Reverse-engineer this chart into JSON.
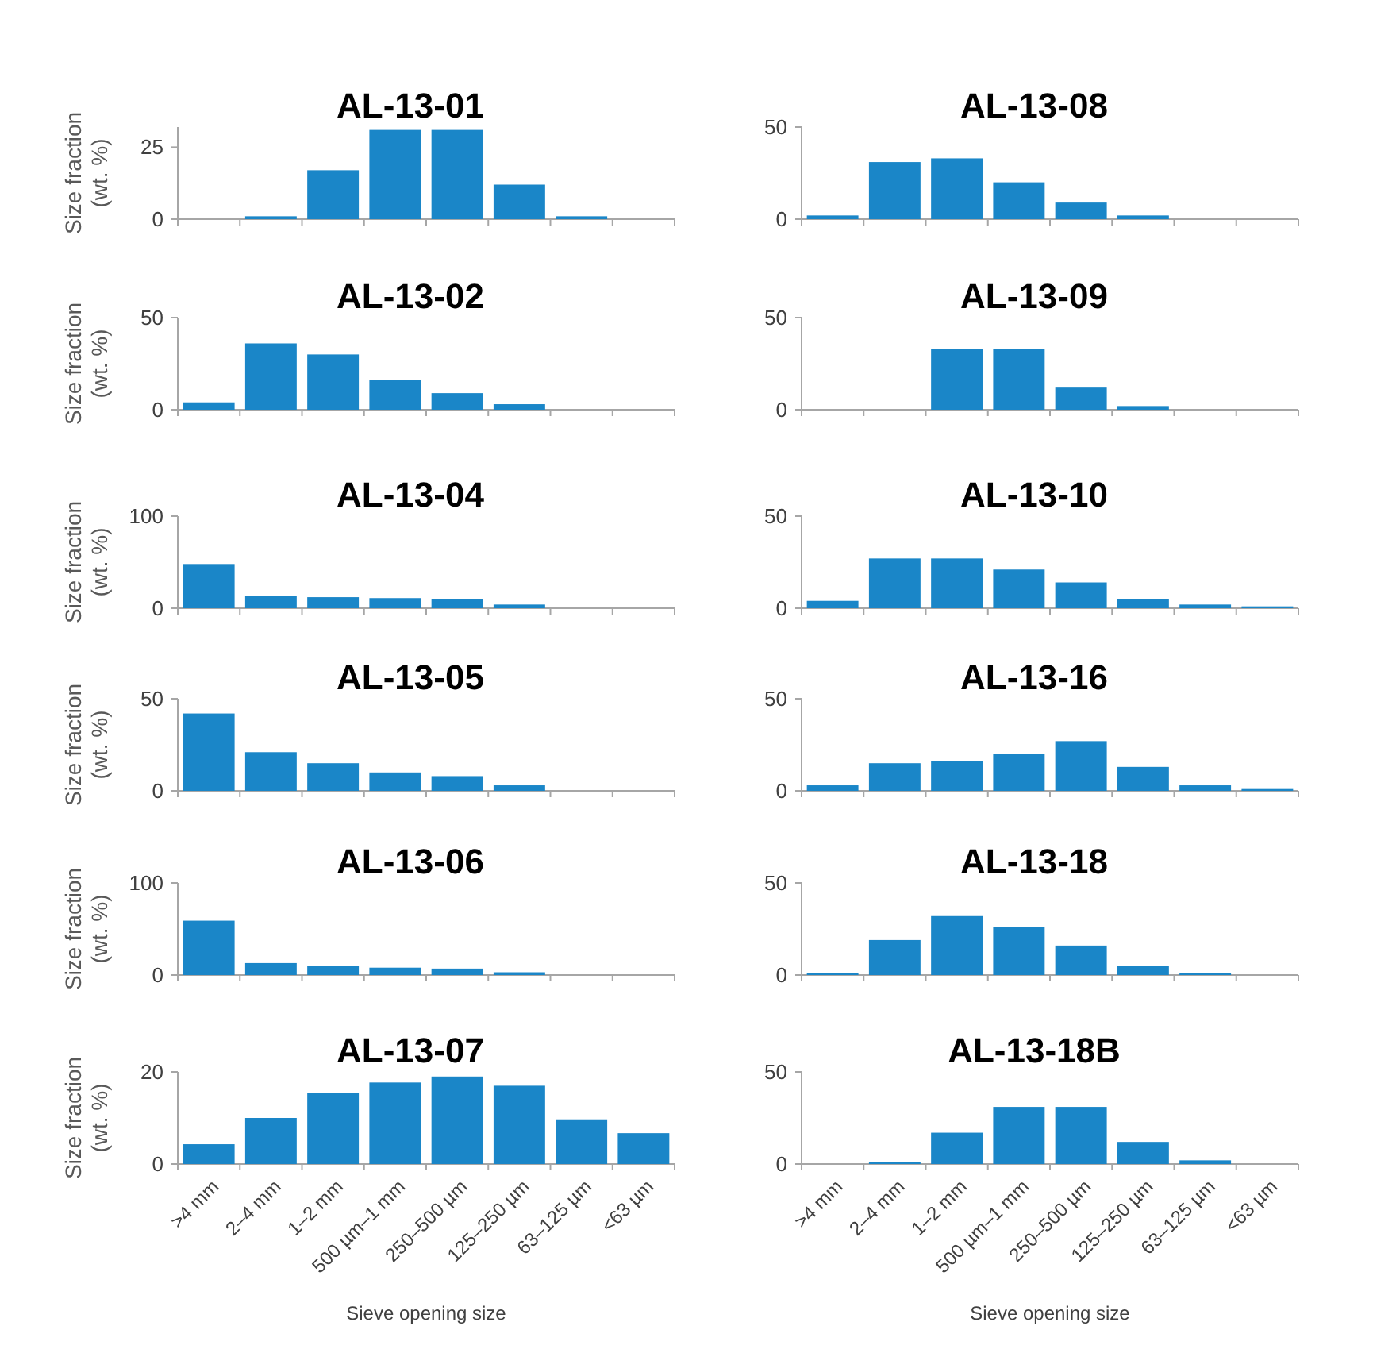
{
  "chart_data": [
    {
      "type": "bar",
      "title": "AL-13-01",
      "ylabel": "Size fraction (wt. %)",
      "categories": [
        null,
        null,
        null,
        null,
        null,
        null,
        null,
        null
      ],
      "values": [
        0,
        1,
        17,
        31,
        31,
        12,
        1,
        0
      ],
      "color": "#1a86c8",
      "ylim": [
        0,
        32
      ],
      "yticks": [
        0,
        25
      ],
      "tick_labels": "y"
    },
    {
      "type": "bar",
      "title": "AL-13-08",
      "categories": [
        null,
        null,
        null,
        null,
        null,
        null,
        null,
        null
      ],
      "values": [
        2,
        31,
        33,
        20,
        9,
        2,
        0,
        0
      ],
      "color": "#1a86c8",
      "ylim": [
        0,
        50
      ],
      "yticks": [
        0,
        50
      ],
      "tick_labels": "y"
    },
    {
      "type": "bar",
      "title": "AL-13-02",
      "ylabel": "Size fraction (wt. %)",
      "categories": [
        null,
        null,
        null,
        null,
        null,
        null,
        null,
        null
      ],
      "values": [
        4,
        36,
        30,
        16,
        9,
        3,
        0,
        0
      ],
      "color": "#1a86c8",
      "ylim": [
        0,
        50
      ],
      "yticks": [
        0,
        50
      ],
      "tick_labels": "y"
    },
    {
      "type": "bar",
      "title": "AL-13-09",
      "categories": [
        null,
        null,
        null,
        null,
        null,
        null,
        null,
        null
      ],
      "values": [
        0,
        0,
        33,
        33,
        12,
        2,
        0,
        0
      ],
      "color": "#1a86c8",
      "ylim": [
        0,
        50
      ],
      "yticks": [
        0,
        50
      ],
      "tick_labels": "y"
    },
    {
      "type": "bar",
      "title": "AL-13-04",
      "ylabel": "Size fraction (wt. %)",
      "categories": [
        null,
        null,
        null,
        null,
        null,
        null,
        null,
        null
      ],
      "values": [
        48,
        13,
        12,
        11,
        10,
        4,
        0,
        0
      ],
      "color": "#1a86c8",
      "ylim": [
        0,
        100
      ],
      "yticks": [
        0,
        100
      ],
      "tick_labels": "y"
    },
    {
      "type": "bar",
      "title": "AL-13-10",
      "categories": [
        null,
        null,
        null,
        null,
        null,
        null,
        null,
        null
      ],
      "values": [
        4,
        27,
        27,
        21,
        14,
        5,
        2,
        1
      ],
      "color": "#1a86c8",
      "ylim": [
        0,
        50
      ],
      "yticks": [
        0,
        50
      ],
      "tick_labels": "y"
    },
    {
      "type": "bar",
      "title": "AL-13-05",
      "ylabel": "Size fraction (wt. %)",
      "categories": [
        null,
        null,
        null,
        null,
        null,
        null,
        null,
        null
      ],
      "values": [
        42,
        21,
        15,
        10,
        8,
        3,
        0,
        0
      ],
      "color": "#1a86c8",
      "ylim": [
        0,
        50
      ],
      "yticks": [
        0,
        50
      ],
      "tick_labels": "y"
    },
    {
      "type": "bar",
      "title": "AL-13-16",
      "categories": [
        null,
        null,
        null,
        null,
        null,
        null,
        null,
        null
      ],
      "values": [
        3,
        15,
        16,
        20,
        27,
        13,
        3,
        1
      ],
      "color": "#1a86c8",
      "ylim": [
        0,
        50
      ],
      "yticks": [
        0,
        50
      ],
      "tick_labels": "y"
    },
    {
      "type": "bar",
      "title": "AL-13-06",
      "ylabel": "Size fraction (wt. %)",
      "categories": [
        null,
        null,
        null,
        null,
        null,
        null,
        null,
        null
      ],
      "values": [
        59,
        13,
        10,
        8,
        7,
        3,
        0,
        0
      ],
      "color": "#1a86c8",
      "ylim": [
        0,
        100
      ],
      "yticks": [
        0,
        100
      ],
      "tick_labels": "y"
    },
    {
      "type": "bar",
      "title": "AL-13-18",
      "categories": [
        null,
        null,
        null,
        null,
        null,
        null,
        null,
        null
      ],
      "values": [
        1,
        19,
        32,
        26,
        16,
        5,
        1,
        0
      ],
      "color": "#1a86c8",
      "ylim": [
        0,
        50
      ],
      "yticks": [
        0,
        50
      ],
      "tick_labels": "y"
    },
    {
      "type": "bar",
      "title": "AL-13-07",
      "ylabel": "Size fraction (wt. %)",
      "xlabel": "Sieve opening size",
      "categories": [
        ">4 mm",
        "2–4 mm",
        "1–2 mm",
        "500 µm–1 mm",
        "250–500 µm",
        "125–250 µm",
        "63–125 µm",
        "<63 µm"
      ],
      "values": [
        4.3,
        10,
        15.4,
        17.7,
        19,
        17,
        9.7,
        6.7
      ],
      "color": "#1a86c8",
      "ylim": [
        0,
        20
      ],
      "yticks": [
        0,
        20
      ]
    },
    {
      "type": "bar",
      "title": "AL-13-18B",
      "xlabel": "Sieve opening size",
      "categories": [
        ">4 mm",
        "2–4 mm",
        "1–2 mm",
        "500 µm–1 mm",
        "250–500 µm",
        "125–250 µm",
        "63–125 µm",
        "<63 µm"
      ],
      "values": [
        0,
        1,
        17,
        31,
        31,
        12,
        2,
        0
      ],
      "color": "#1a86c8",
      "ylim": [
        0,
        50
      ],
      "yticks": [
        0,
        50
      ]
    }
  ]
}
